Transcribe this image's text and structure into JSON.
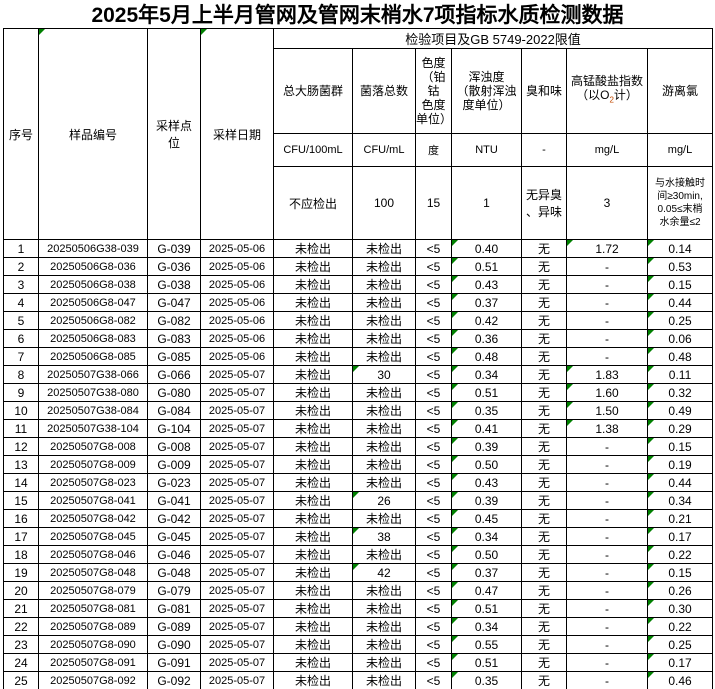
{
  "title": "2025年5月上半月管网及管网末梢水7项指标水质检测数据",
  "table": {
    "columns": {
      "no": "序号",
      "sample_id": "样品编号",
      "point": "采样点\n位",
      "date": "采样日期"
    },
    "group_title": "检验项目及GB 5749-2022限值",
    "indicators": {
      "coliform": {
        "name": "总大肠菌群",
        "unit": "CFU/100mL",
        "limit": "不应检出"
      },
      "colony": {
        "name": "菌落总数",
        "unit": "CFU/mL",
        "limit": "100"
      },
      "chroma": {
        "name": "色度\n（铂钴\n色度\n单位）",
        "unit": "度",
        "limit": "15"
      },
      "turbidity": {
        "name": "浑浊度\n（散射浑浊\n度单位）",
        "unit": "NTU",
        "limit": "1"
      },
      "odor": {
        "name": "臭和味",
        "unit": "-",
        "limit": "无异臭\n、异味"
      },
      "permanganate": {
        "name_line1": "高锰酸盐指数",
        "name_pre": "（以O",
        "name_sub": "2",
        "name_post": "计）",
        "unit": "mg/L",
        "limit": "3"
      },
      "chlorine": {
        "name": "游离氯",
        "unit": "mg/L",
        "limit": "与水接触时\n间≥30min,\n0.05≤末梢\n水余量≤2"
      }
    },
    "error_indicator_color": "#008000",
    "rows": [
      {
        "no": "1",
        "id": "20250506G38-039",
        "point": "G-039",
        "date": "2025-05-06",
        "coliform": "未检出",
        "colony": "未检出",
        "chroma": "<5",
        "turbidity": "0.40",
        "odor": "无",
        "permanganate": "1.72",
        "chlorine": "0.14",
        "flags": [
          "turbidity",
          "permanganate",
          "chlorine"
        ]
      },
      {
        "no": "2",
        "id": "20250506G8-036",
        "point": "G-036",
        "date": "2025-05-06",
        "coliform": "未检出",
        "colony": "未检出",
        "chroma": "<5",
        "turbidity": "0.51",
        "odor": "无",
        "permanganate": "-",
        "chlorine": "0.53",
        "flags": [
          "turbidity",
          "chlorine"
        ]
      },
      {
        "no": "3",
        "id": "20250506G8-038",
        "point": "G-038",
        "date": "2025-05-06",
        "coliform": "未检出",
        "colony": "未检出",
        "chroma": "<5",
        "turbidity": "0.43",
        "odor": "无",
        "permanganate": "-",
        "chlorine": "0.15",
        "flags": [
          "turbidity",
          "chlorine"
        ]
      },
      {
        "no": "4",
        "id": "20250506G8-047",
        "point": "G-047",
        "date": "2025-05-06",
        "coliform": "未检出",
        "colony": "未检出",
        "chroma": "<5",
        "turbidity": "0.37",
        "odor": "无",
        "permanganate": "-",
        "chlorine": "0.44",
        "flags": [
          "turbidity",
          "chlorine"
        ]
      },
      {
        "no": "5",
        "id": "20250506G8-082",
        "point": "G-082",
        "date": "2025-05-06",
        "coliform": "未检出",
        "colony": "未检出",
        "chroma": "<5",
        "turbidity": "0.42",
        "odor": "无",
        "permanganate": "-",
        "chlorine": "0.25",
        "flags": [
          "turbidity",
          "chlorine"
        ]
      },
      {
        "no": "6",
        "id": "20250506G8-083",
        "point": "G-083",
        "date": "2025-05-06",
        "coliform": "未检出",
        "colony": "未检出",
        "chroma": "<5",
        "turbidity": "0.36",
        "odor": "无",
        "permanganate": "-",
        "chlorine": "0.06",
        "flags": [
          "turbidity",
          "chlorine"
        ]
      },
      {
        "no": "7",
        "id": "20250506G8-085",
        "point": "G-085",
        "date": "2025-05-06",
        "coliform": "未检出",
        "colony": "未检出",
        "chroma": "<5",
        "turbidity": "0.48",
        "odor": "无",
        "permanganate": "-",
        "chlorine": "0.48",
        "flags": [
          "turbidity",
          "chlorine"
        ]
      },
      {
        "no": "8",
        "id": "20250507G38-066",
        "point": "G-066",
        "date": "2025-05-07",
        "coliform": "未检出",
        "colony": "30",
        "chroma": "<5",
        "turbidity": "0.34",
        "odor": "无",
        "permanganate": "1.83",
        "chlorine": "0.11",
        "flags": [
          "colony",
          "turbidity",
          "permanganate",
          "chlorine"
        ]
      },
      {
        "no": "9",
        "id": "20250507G38-080",
        "point": "G-080",
        "date": "2025-05-07",
        "coliform": "未检出",
        "colony": "未检出",
        "chroma": "<5",
        "turbidity": "0.51",
        "odor": "无",
        "permanganate": "1.60",
        "chlorine": "0.32",
        "flags": [
          "turbidity",
          "permanganate",
          "chlorine"
        ]
      },
      {
        "no": "10",
        "id": "20250507G38-084",
        "point": "G-084",
        "date": "2025-05-07",
        "coliform": "未检出",
        "colony": "未检出",
        "chroma": "<5",
        "turbidity": "0.35",
        "odor": "无",
        "permanganate": "1.50",
        "chlorine": "0.49",
        "flags": [
          "turbidity",
          "permanganate",
          "chlorine"
        ]
      },
      {
        "no": "11",
        "id": "20250507G38-104",
        "point": "G-104",
        "date": "2025-05-07",
        "coliform": "未检出",
        "colony": "未检出",
        "chroma": "<5",
        "turbidity": "0.41",
        "odor": "无",
        "permanganate": "1.38",
        "chlorine": "0.29",
        "flags": [
          "turbidity",
          "permanganate",
          "chlorine"
        ]
      },
      {
        "no": "12",
        "id": "20250507G8-008",
        "point": "G-008",
        "date": "2025-05-07",
        "coliform": "未检出",
        "colony": "未检出",
        "chroma": "<5",
        "turbidity": "0.39",
        "odor": "无",
        "permanganate": "-",
        "chlorine": "0.15",
        "flags": [
          "turbidity",
          "chlorine"
        ]
      },
      {
        "no": "13",
        "id": "20250507G8-009",
        "point": "G-009",
        "date": "2025-05-07",
        "coliform": "未检出",
        "colony": "未检出",
        "chroma": "<5",
        "turbidity": "0.50",
        "odor": "无",
        "permanganate": "-",
        "chlorine": "0.19",
        "flags": [
          "turbidity",
          "chlorine"
        ]
      },
      {
        "no": "14",
        "id": "20250507G8-023",
        "point": "G-023",
        "date": "2025-05-07",
        "coliform": "未检出",
        "colony": "未检出",
        "chroma": "<5",
        "turbidity": "0.43",
        "odor": "无",
        "permanganate": "-",
        "chlorine": "0.44",
        "flags": [
          "turbidity",
          "chlorine"
        ]
      },
      {
        "no": "15",
        "id": "20250507G8-041",
        "point": "G-041",
        "date": "2025-05-07",
        "coliform": "未检出",
        "colony": "26",
        "chroma": "<5",
        "turbidity": "0.39",
        "odor": "无",
        "permanganate": "-",
        "chlorine": "0.34",
        "flags": [
          "colony",
          "turbidity",
          "chlorine"
        ]
      },
      {
        "no": "16",
        "id": "20250507G8-042",
        "point": "G-042",
        "date": "2025-05-07",
        "coliform": "未检出",
        "colony": "未检出",
        "chroma": "<5",
        "turbidity": "0.45",
        "odor": "无",
        "permanganate": "-",
        "chlorine": "0.21",
        "flags": [
          "turbidity",
          "chlorine"
        ]
      },
      {
        "no": "17",
        "id": "20250507G8-045",
        "point": "G-045",
        "date": "2025-05-07",
        "coliform": "未检出",
        "colony": "38",
        "chroma": "<5",
        "turbidity": "0.34",
        "odor": "无",
        "permanganate": "-",
        "chlorine": "0.17",
        "flags": [
          "colony",
          "turbidity",
          "chlorine"
        ]
      },
      {
        "no": "18",
        "id": "20250507G8-046",
        "point": "G-046",
        "date": "2025-05-07",
        "coliform": "未检出",
        "colony": "未检出",
        "chroma": "<5",
        "turbidity": "0.50",
        "odor": "无",
        "permanganate": "-",
        "chlorine": "0.22",
        "flags": [
          "turbidity",
          "chlorine"
        ]
      },
      {
        "no": "19",
        "id": "20250507G8-048",
        "point": "G-048",
        "date": "2025-05-07",
        "coliform": "未检出",
        "colony": "42",
        "chroma": "<5",
        "turbidity": "0.37",
        "odor": "无",
        "permanganate": "-",
        "chlorine": "0.15",
        "flags": [
          "colony",
          "turbidity",
          "chlorine"
        ]
      },
      {
        "no": "20",
        "id": "20250507G8-079",
        "point": "G-079",
        "date": "2025-05-07",
        "coliform": "未检出",
        "colony": "未检出",
        "chroma": "<5",
        "turbidity": "0.47",
        "odor": "无",
        "permanganate": "-",
        "chlorine": "0.26",
        "flags": [
          "turbidity",
          "chlorine"
        ]
      },
      {
        "no": "21",
        "id": "20250507G8-081",
        "point": "G-081",
        "date": "2025-05-07",
        "coliform": "未检出",
        "colony": "未检出",
        "chroma": "<5",
        "turbidity": "0.51",
        "odor": "无",
        "permanganate": "-",
        "chlorine": "0.30",
        "flags": [
          "turbidity",
          "chlorine"
        ]
      },
      {
        "no": "22",
        "id": "20250507G8-089",
        "point": "G-089",
        "date": "2025-05-07",
        "coliform": "未检出",
        "colony": "未检出",
        "chroma": "<5",
        "turbidity": "0.34",
        "odor": "无",
        "permanganate": "-",
        "chlorine": "0.22",
        "flags": [
          "turbidity",
          "chlorine"
        ]
      },
      {
        "no": "23",
        "id": "20250507G8-090",
        "point": "G-090",
        "date": "2025-05-07",
        "coliform": "未检出",
        "colony": "未检出",
        "chroma": "<5",
        "turbidity": "0.55",
        "odor": "无",
        "permanganate": "-",
        "chlorine": "0.25",
        "flags": [
          "turbidity",
          "chlorine"
        ]
      },
      {
        "no": "24",
        "id": "20250507G8-091",
        "point": "G-091",
        "date": "2025-05-07",
        "coliform": "未检出",
        "colony": "未检出",
        "chroma": "<5",
        "turbidity": "0.51",
        "odor": "无",
        "permanganate": "-",
        "chlorine": "0.17",
        "flags": [
          "turbidity",
          "chlorine"
        ]
      },
      {
        "no": "25",
        "id": "20250507G8-092",
        "point": "G-092",
        "date": "2025-05-07",
        "coliform": "未检出",
        "colony": "未检出",
        "chroma": "<5",
        "turbidity": "0.35",
        "odor": "无",
        "permanganate": "-",
        "chlorine": "0.46",
        "flags": [
          "turbidity",
          "chlorine"
        ]
      }
    ]
  }
}
